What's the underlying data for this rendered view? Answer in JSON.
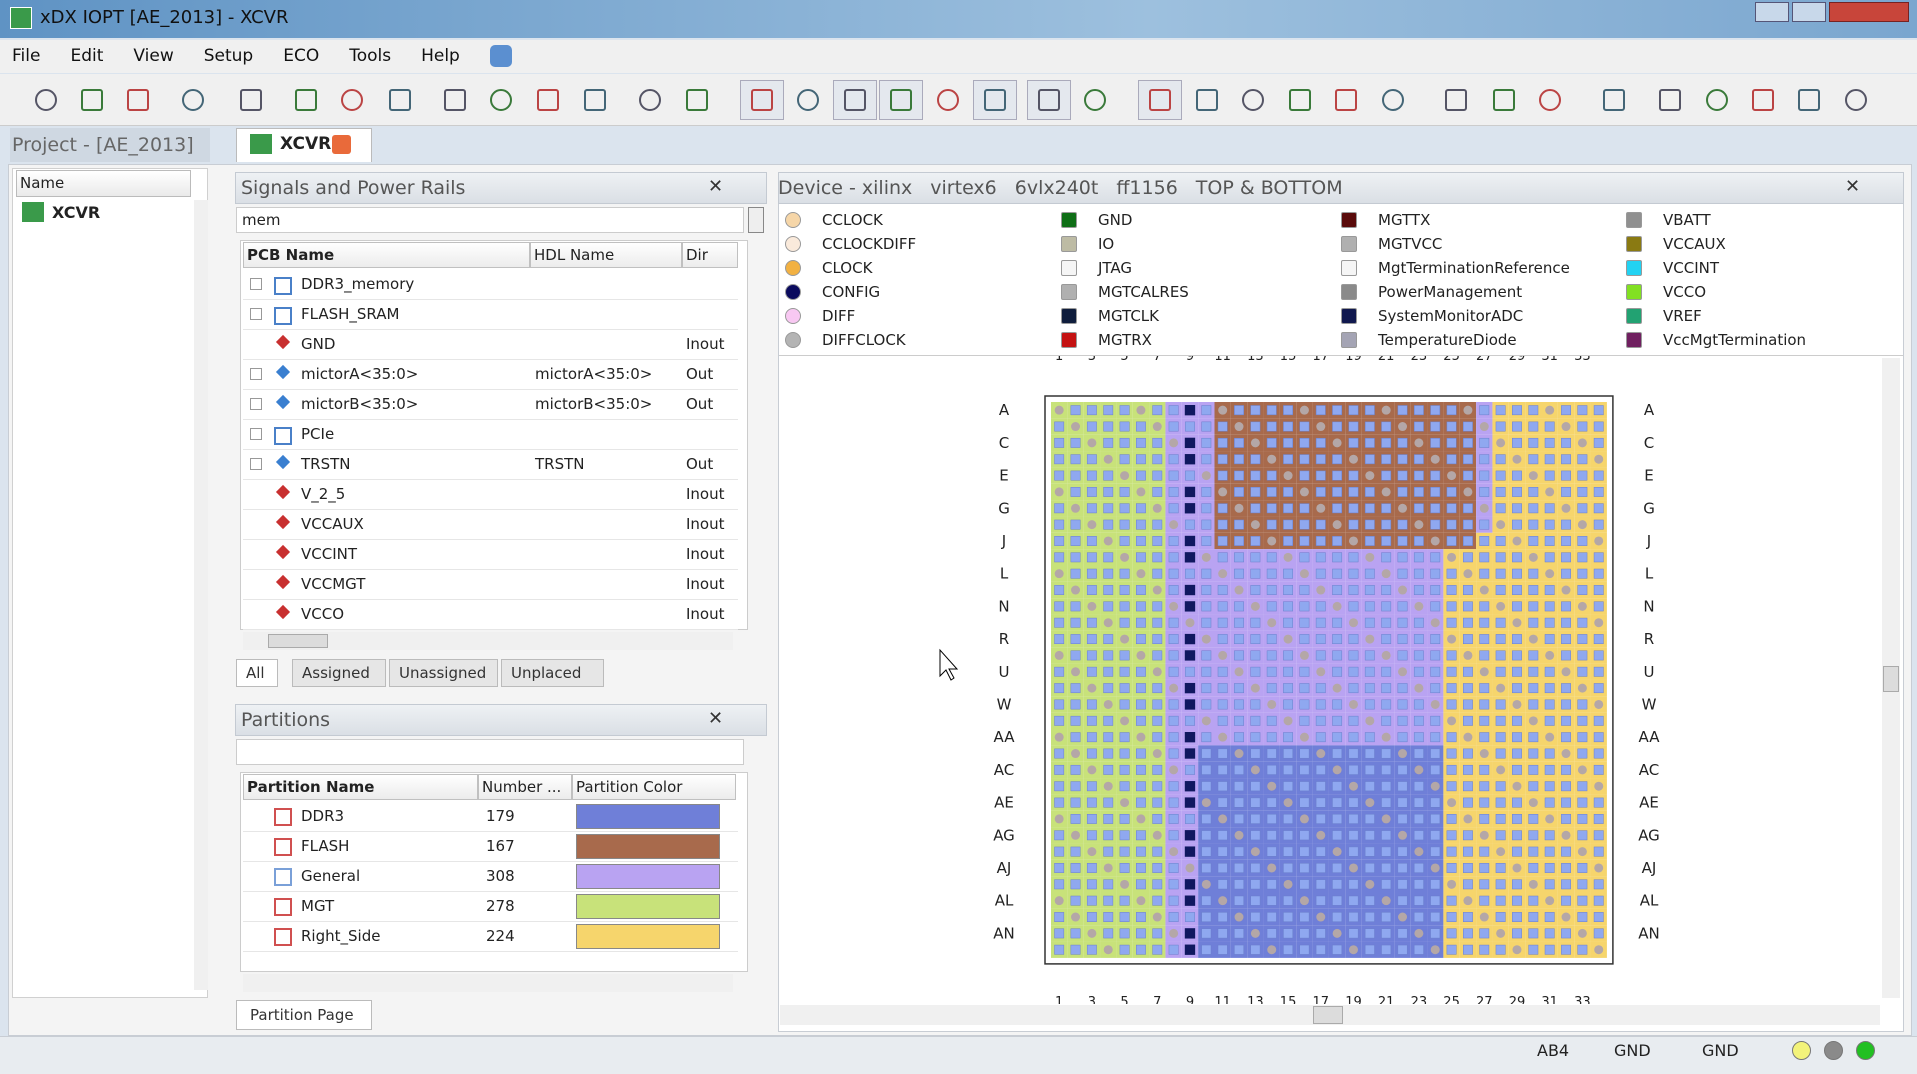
{
  "window": {
    "title": "xDX IOPT [AE_2013] - XCVR"
  },
  "menu": [
    "File",
    "Edit",
    "View",
    "Setup",
    "ECO",
    "Tools",
    "Help"
  ],
  "project": {
    "title": "Project - [AE_2013]",
    "column": "Name",
    "items": [
      "XCVR"
    ]
  },
  "tab": "XCVR",
  "signals": {
    "title": "Signals and Power Rails",
    "filter": "mem",
    "columns": [
      "PCB Name",
      "HDL Name",
      "Dir"
    ],
    "rows": [
      {
        "pcb": "DDR3_memory"
      },
      {
        "pcb": "FLASH_SRAM"
      },
      {
        "pcb": "GND",
        "dir": "Inout"
      },
      {
        "pcb": "mictorA<35:0>",
        "hdl": "mictorA<35:0>",
        "dir": "Out"
      },
      {
        "pcb": "mictorB<35:0>",
        "hdl": "mictorB<35:0>",
        "dir": "Out"
      },
      {
        "pcb": "PCIe"
      },
      {
        "pcb": "TRSTN",
        "hdl": "TRSTN",
        "dir": "Out"
      },
      {
        "pcb": "V_2_5",
        "dir": "Inout"
      },
      {
        "pcb": "VCCAUX",
        "dir": "Inout"
      },
      {
        "pcb": "VCCINT",
        "dir": "Inout"
      },
      {
        "pcb": "VCCMGT",
        "dir": "Inout"
      },
      {
        "pcb": "VCCO",
        "dir": "Inout"
      }
    ],
    "tabs": [
      "All",
      "Assigned",
      "Unassigned",
      "Unplaced"
    ]
  },
  "partitions": {
    "title": "Partitions",
    "columns": [
      "Partition Name",
      "Number ...",
      "Partition Color"
    ],
    "rows": [
      {
        "name": "DDR3",
        "number": 179,
        "color": "#6f7fd8"
      },
      {
        "name": "FLASH",
        "number": 167,
        "color": "#a86a4c"
      },
      {
        "name": "General",
        "number": 308,
        "color": "#b9a3f2"
      },
      {
        "name": "MGT",
        "number": 278,
        "color": "#c8e27a"
      },
      {
        "name": "Right_Side",
        "number": 224,
        "color": "#f6d56c"
      }
    ],
    "page_tab": "Partition Page"
  },
  "device": {
    "title": [
      "Device - xilinx",
      "virtex6",
      "6vlx240t",
      "ff1156",
      "TOP & BOTTOM"
    ],
    "legend": [
      {
        "label": "CCLOCK",
        "color": "#f6d6a8"
      },
      {
        "label": "CCLOCKDIFF",
        "color": "#faeadb"
      },
      {
        "label": "CLOCK",
        "color": "#f2b142"
      },
      {
        "label": "CONFIG",
        "color": "#0b0b5e"
      },
      {
        "label": "DIFF",
        "color": "#f8c8f2"
      },
      {
        "label": "DIFFCLOCK",
        "color": "#b4b4b4"
      },
      {
        "label": "GND",
        "color": "#0f6e16"
      },
      {
        "label": "IO",
        "color": "#bdbba4"
      },
      {
        "label": "JTAG",
        "color": "#f5f5f5"
      },
      {
        "label": "MGTCALRES",
        "color": "#b0b0b0"
      },
      {
        "label": "MGTCLK",
        "color": "#0f1d3c"
      },
      {
        "label": "MGTRX",
        "color": "#c41212"
      },
      {
        "label": "MGTTX",
        "color": "#5a0b0b"
      },
      {
        "label": "MGTVCC",
        "color": "#b0b0b0"
      },
      {
        "label": "MgtTerminationReference",
        "color": "#f5f5f5"
      },
      {
        "label": "PowerManagement",
        "color": "#8a8a8a"
      },
      {
        "label": "SystemMonitorADC",
        "color": "#10184e"
      },
      {
        "label": "TemperatureDiode",
        "color": "#a4a4b4"
      },
      {
        "label": "VBATT",
        "color": "#909090"
      },
      {
        "label": "VCCAUX",
        "color": "#8a7a12"
      },
      {
        "label": "VCCINT",
        "color": "#22d2f2"
      },
      {
        "label": "VCCO",
        "color": "#82e022"
      },
      {
        "label": "VREF",
        "color": "#22a272"
      },
      {
        "label": "VccMgtTermination",
        "color": "#702060"
      }
    ],
    "rows": [
      "A",
      "C",
      "E",
      "G",
      "J",
      "L",
      "N",
      "R",
      "U",
      "W",
      "AA",
      "AC",
      "AE",
      "AG",
      "AJ",
      "AL",
      "AN"
    ],
    "columns": [
      "1",
      "3",
      "5",
      "7",
      "9",
      "11",
      "13",
      "15",
      "17",
      "19",
      "21",
      "23",
      "25",
      "27",
      "29",
      "31",
      "33"
    ]
  },
  "status": [
    "AB4",
    "GND",
    "GND"
  ]
}
